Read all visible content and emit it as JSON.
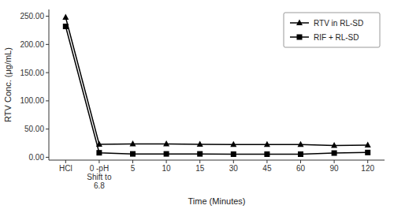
{
  "chart_data": {
    "type": "line",
    "x_label": "Time (Minutes)",
    "y_label": "RTV Conc. (μg/mL)",
    "categories": [
      "HCl",
      "0 -pH\nShift to\n6.8",
      "5",
      "10",
      "15",
      "30",
      "45",
      "60",
      "90",
      "120"
    ],
    "series": [
      {
        "name": "RTV in RL-SD",
        "color": "#000000",
        "marker": "triangle",
        "values": [
          248.0,
          23.0,
          23.5,
          23.5,
          23.0,
          22.5,
          22.5,
          22.5,
          21.0,
          21.5
        ]
      },
      {
        "name": "RIF + RL-SD",
        "color": "#000000",
        "marker": "square",
        "values": [
          232.0,
          8.0,
          6.0,
          6.0,
          6.0,
          5.5,
          5.5,
          5.5,
          7.5,
          8.5
        ]
      }
    ],
    "ylim": [
      -5,
      262
    ],
    "yticks": [
      {
        "value": 0.0,
        "label": "0.00"
      },
      {
        "value": 50.0,
        "label": "50.00"
      },
      {
        "value": 100.0,
        "label": "100.00"
      },
      {
        "value": 150.0,
        "label": "150.00"
      },
      {
        "value": 200.0,
        "label": "200.00"
      },
      {
        "value": 250.0,
        "label": "250.00"
      }
    ],
    "legend": "upper right",
    "grid": false
  }
}
